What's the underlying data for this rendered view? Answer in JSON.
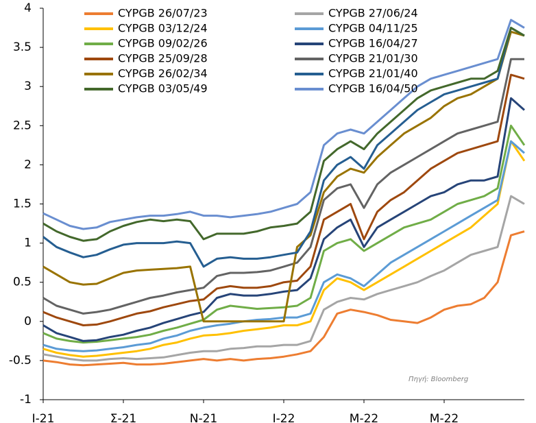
{
  "chart_data": {
    "type": "line",
    "annotation": "Πηγή: Bloomberg",
    "categories": [
      "Ι-21",
      null,
      null,
      null,
      null,
      null,
      "Σ-21",
      null,
      null,
      null,
      null,
      null,
      "Ν-21",
      null,
      null,
      null,
      null,
      null,
      "Ι-22",
      null,
      null,
      null,
      null,
      null,
      "Μ-22",
      null,
      null,
      null,
      null,
      null,
      "Μ-22",
      null,
      null,
      null,
      null,
      null,
      null
    ],
    "ylim": [
      -1,
      4
    ],
    "yticks": [
      -1,
      -0.5,
      0,
      0.5,
      1,
      1.5,
      2,
      2.5,
      3,
      3.5,
      4
    ],
    "grid": false,
    "series": [
      {
        "name": "CYPGB 26/07/23",
        "color": "#ed7d31",
        "values": [
          -0.5,
          -0.52,
          -0.55,
          -0.56,
          -0.55,
          -0.54,
          -0.53,
          -0.55,
          -0.55,
          -0.54,
          -0.52,
          -0.5,
          -0.48,
          -0.5,
          -0.48,
          -0.5,
          -0.48,
          -0.47,
          -0.45,
          -0.42,
          -0.38,
          -0.2,
          0.1,
          0.15,
          0.12,
          0.08,
          0.02,
          0.0,
          -0.02,
          0.05,
          0.15,
          0.2,
          0.22,
          0.3,
          0.5,
          1.1,
          1.15
        ]
      },
      {
        "name": "CYPGB 27/06/24",
        "color": "#a5a5a5",
        "values": [
          -0.42,
          -0.45,
          -0.48,
          -0.5,
          -0.5,
          -0.48,
          -0.47,
          -0.48,
          -0.47,
          -0.46,
          -0.43,
          -0.4,
          -0.38,
          -0.38,
          -0.35,
          -0.34,
          -0.32,
          -0.32,
          -0.3,
          -0.3,
          -0.25,
          0.15,
          0.25,
          0.3,
          0.28,
          0.35,
          0.4,
          0.45,
          0.5,
          0.58,
          0.65,
          0.75,
          0.85,
          0.9,
          0.95,
          1.6,
          1.5
        ]
      },
      {
        "name": "CYPGB 03/12/24",
        "color": "#ffc000",
        "values": [
          -0.35,
          -0.4,
          -0.43,
          -0.45,
          -0.44,
          -0.42,
          -0.4,
          -0.38,
          -0.35,
          -0.3,
          -0.27,
          -0.22,
          -0.18,
          -0.17,
          -0.15,
          -0.12,
          -0.1,
          -0.08,
          -0.05,
          -0.05,
          0.0,
          0.4,
          0.55,
          0.5,
          0.4,
          0.5,
          0.6,
          0.7,
          0.8,
          0.9,
          1.0,
          1.1,
          1.2,
          1.35,
          1.5,
          2.3,
          2.05
        ]
      },
      {
        "name": "CYPGB 04/11/25",
        "color": "#5b9bd5",
        "values": [
          -0.3,
          -0.35,
          -0.37,
          -0.38,
          -0.37,
          -0.35,
          -0.33,
          -0.3,
          -0.28,
          -0.22,
          -0.18,
          -0.12,
          -0.08,
          -0.05,
          -0.03,
          0.0,
          0.02,
          0.03,
          0.05,
          0.05,
          0.1,
          0.5,
          0.6,
          0.55,
          0.45,
          0.6,
          0.75,
          0.85,
          0.95,
          1.05,
          1.15,
          1.25,
          1.35,
          1.45,
          1.55,
          2.3,
          2.15
        ]
      },
      {
        "name": "CYPGB 09/02/26",
        "color": "#70ad47",
        "values": [
          -0.15,
          -0.22,
          -0.25,
          -0.27,
          -0.26,
          -0.24,
          -0.22,
          -0.2,
          -0.17,
          -0.12,
          -0.08,
          -0.03,
          0.02,
          0.15,
          0.2,
          0.18,
          0.16,
          0.17,
          0.18,
          0.2,
          0.3,
          0.9,
          1.0,
          1.05,
          0.9,
          1.0,
          1.1,
          1.2,
          1.25,
          1.3,
          1.4,
          1.5,
          1.55,
          1.6,
          1.7,
          2.5,
          2.25
        ]
      },
      {
        "name": "CYPGB 16/04/27",
        "color": "#264478",
        "values": [
          -0.05,
          -0.15,
          -0.2,
          -0.25,
          -0.24,
          -0.2,
          -0.17,
          -0.12,
          -0.08,
          -0.02,
          0.03,
          0.08,
          0.12,
          0.3,
          0.35,
          0.33,
          0.33,
          0.35,
          0.38,
          0.4,
          0.55,
          1.05,
          1.2,
          1.3,
          0.95,
          1.2,
          1.3,
          1.4,
          1.5,
          1.6,
          1.65,
          1.75,
          1.8,
          1.8,
          1.85,
          2.85,
          2.7
        ]
      },
      {
        "name": "CYPGB 25/09/28",
        "color": "#9e480e",
        "values": [
          0.12,
          0.05,
          0.0,
          -0.05,
          -0.04,
          0.0,
          0.05,
          0.1,
          0.13,
          0.18,
          0.22,
          0.26,
          0.28,
          0.42,
          0.45,
          0.43,
          0.43,
          0.45,
          0.5,
          0.52,
          0.7,
          1.3,
          1.4,
          1.5,
          1.05,
          1.4,
          1.55,
          1.65,
          1.8,
          1.95,
          2.05,
          2.15,
          2.2,
          2.25,
          2.3,
          3.15,
          3.1
        ]
      },
      {
        "name": "CYPGB 21/01/30",
        "color": "#636363",
        "values": [
          0.3,
          0.2,
          0.15,
          0.1,
          0.12,
          0.15,
          0.2,
          0.25,
          0.3,
          0.33,
          0.37,
          0.4,
          0.43,
          0.58,
          0.62,
          0.62,
          0.63,
          0.65,
          0.7,
          0.75,
          0.95,
          1.55,
          1.7,
          1.75,
          1.45,
          1.75,
          1.9,
          2.0,
          2.1,
          2.2,
          2.3,
          2.4,
          2.45,
          2.5,
          2.55,
          3.35,
          3.35
        ]
      },
      {
        "name": "CYPGB 26/02/34",
        "color": "#997300",
        "values": [
          0.7,
          0.6,
          0.5,
          0.47,
          0.48,
          0.55,
          0.62,
          0.65,
          0.66,
          0.67,
          0.68,
          0.7,
          0.0,
          0.0,
          0.0,
          0.0,
          0.0,
          0.0,
          0.0,
          0.95,
          1.1,
          1.65,
          1.85,
          1.95,
          1.9,
          2.1,
          2.25,
          2.4,
          2.5,
          2.6,
          2.75,
          2.85,
          2.9,
          3.0,
          3.1,
          3.7,
          3.65
        ]
      },
      {
        "name": "CYPGB 21/01/40",
        "color": "#255e91",
        "values": [
          1.08,
          0.95,
          0.88,
          0.82,
          0.85,
          0.92,
          0.98,
          1.0,
          1.0,
          1.0,
          1.02,
          1.0,
          0.7,
          0.8,
          0.82,
          0.8,
          0.8,
          0.82,
          0.85,
          0.88,
          1.15,
          1.8,
          2.0,
          2.1,
          1.95,
          2.25,
          2.4,
          2.55,
          2.7,
          2.8,
          2.9,
          2.95,
          3.0,
          3.05,
          3.1,
          3.75,
          3.65
        ]
      },
      {
        "name": "CYPGB 03/05/49",
        "color": "#43682b",
        "values": [
          1.25,
          1.15,
          1.08,
          1.03,
          1.05,
          1.15,
          1.22,
          1.27,
          1.3,
          1.28,
          1.3,
          1.28,
          1.05,
          1.12,
          1.12,
          1.12,
          1.15,
          1.2,
          1.22,
          1.25,
          1.4,
          2.05,
          2.2,
          2.3,
          2.2,
          2.4,
          2.55,
          2.7,
          2.85,
          2.95,
          3.0,
          3.05,
          3.1,
          3.1,
          3.2,
          3.75,
          3.65
        ]
      },
      {
        "name": "CYPGB 16/04/50",
        "color": "#698ed0",
        "values": [
          1.38,
          1.3,
          1.22,
          1.18,
          1.2,
          1.27,
          1.3,
          1.33,
          1.35,
          1.35,
          1.37,
          1.4,
          1.35,
          1.35,
          1.33,
          1.35,
          1.37,
          1.4,
          1.45,
          1.5,
          1.65,
          2.25,
          2.4,
          2.45,
          2.4,
          2.55,
          2.7,
          2.85,
          3.0,
          3.1,
          3.15,
          3.2,
          3.25,
          3.3,
          3.35,
          3.85,
          3.75
        ]
      }
    ]
  }
}
